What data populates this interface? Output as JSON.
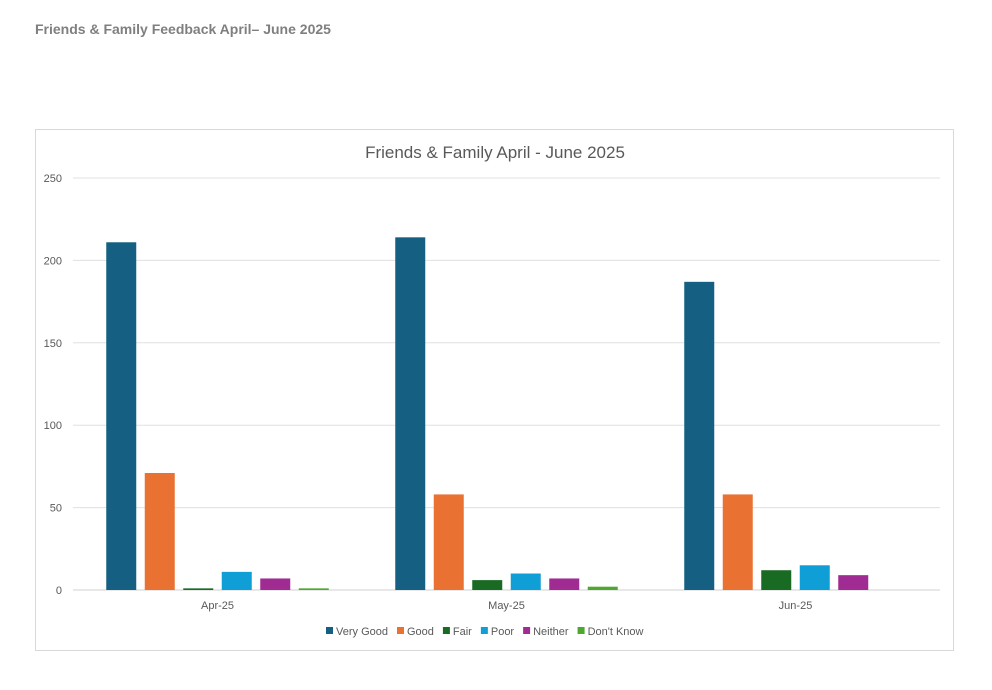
{
  "page_title": "Friends & Family Feedback April– June 2025",
  "chart_data": {
    "type": "bar",
    "title": "Friends & Family April - June 2025",
    "categories": [
      "Apr-25",
      "May-25",
      "Jun-25"
    ],
    "series": [
      {
        "name": "Very Good",
        "color": "#156082",
        "values": [
          211,
          214,
          187
        ]
      },
      {
        "name": "Good",
        "color": "#E97132",
        "values": [
          71,
          58,
          58
        ]
      },
      {
        "name": "Fair",
        "color": "#196B24",
        "values": [
          1,
          6,
          12
        ]
      },
      {
        "name": "Poor",
        "color": "#0F9ED5",
        "values": [
          11,
          10,
          15
        ]
      },
      {
        "name": "Neither",
        "color": "#A02B93",
        "values": [
          7,
          7,
          9
        ]
      },
      {
        "name": "Don't Know",
        "color": "#4EA72E",
        "values": [
          1,
          2,
          0
        ]
      }
    ],
    "yticks": [
      0,
      50,
      100,
      150,
      200,
      250
    ],
    "ylim": [
      0,
      250
    ],
    "xlabel": "",
    "ylabel": "",
    "grid": true,
    "legend": "bottom"
  }
}
